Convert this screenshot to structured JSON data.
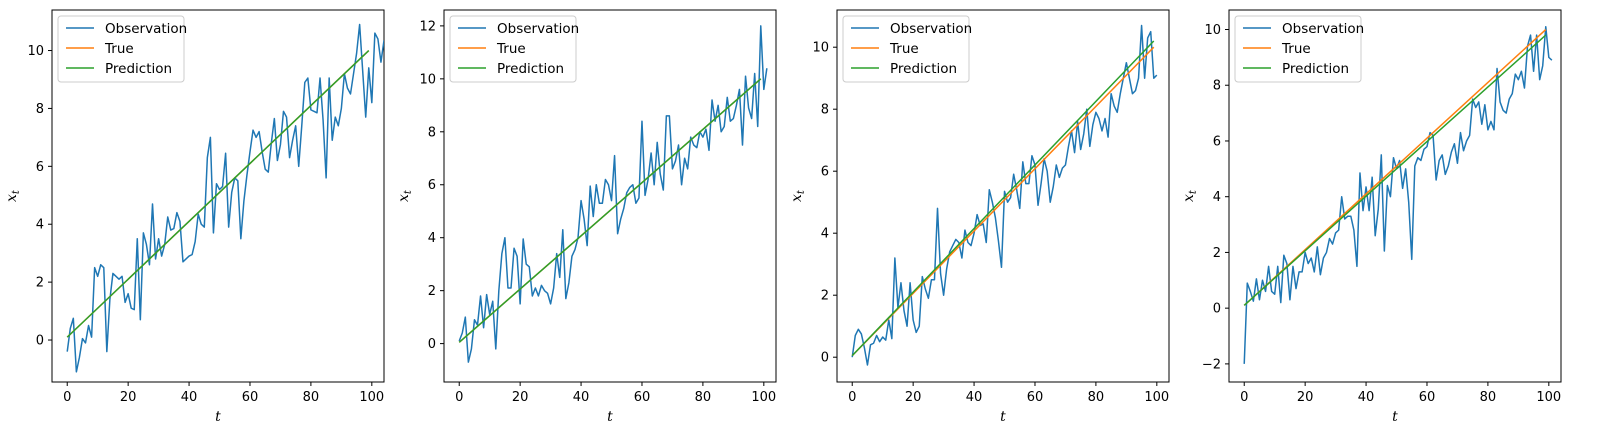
{
  "chart_data": [
    {
      "type": "line",
      "xlabel": "t",
      "ylabel": "x_t",
      "xlim": [
        -5,
        104
      ],
      "ylim": [
        -1.45,
        11.4
      ],
      "xticks": [
        0,
        20,
        40,
        60,
        80,
        100
      ],
      "yticks": [
        0,
        2,
        4,
        6,
        8,
        10
      ],
      "legend_position": "top-left",
      "series": [
        {
          "name": "Observation",
          "color": "#1f77b4",
          "values": [
            -0.4,
            0.4,
            0.75,
            -1.1,
            -0.6,
            0.05,
            -0.1,
            0.5,
            0.1,
            2.5,
            2.2,
            2.6,
            2.5,
            -0.4,
            1.4,
            2.3,
            2.2,
            2.1,
            2.2,
            1.3,
            1.6,
            1.1,
            1.05,
            3.5,
            0.7,
            3.7,
            3.3,
            2.6,
            4.7,
            2.8,
            3.5,
            2.9,
            3.3,
            4.25,
            3.8,
            3.85,
            4.4,
            4.1,
            2.7,
            2.8,
            2.9,
            2.95,
            3.4,
            4.35,
            4.0,
            3.9,
            6.3,
            7.0,
            3.7,
            5.4,
            5.2,
            5.3,
            6.45,
            3.9,
            5.1,
            5.6,
            5.5,
            3.5,
            4.8,
            5.7,
            6.5,
            7.25,
            7.0,
            7.2,
            6.5,
            5.9,
            5.8,
            6.8,
            7.65,
            6.2,
            6.75,
            7.9,
            7.7,
            6.3,
            6.9,
            7.4,
            6.0,
            7.4,
            8.9,
            9.05,
            7.95,
            7.9,
            7.85,
            9.05,
            7.6,
            5.6,
            9.05,
            6.9,
            7.7,
            7.4,
            8.0,
            9.2,
            8.7,
            8.5,
            9.2,
            9.9,
            10.9,
            9.3,
            7.7,
            9.4,
            8.2,
            10.6,
            10.4,
            9.6,
            10.35
          ]
        },
        {
          "name": "True",
          "color": "#ff7f0e",
          "values": [
            0.1,
            10.0
          ]
        },
        {
          "name": "Prediction",
          "color": "#2ca02c",
          "values": [
            0.1,
            10.0
          ]
        }
      ]
    },
    {
      "type": "line",
      "xlabel": "t",
      "ylabel": "x_t",
      "xlim": [
        -5,
        104
      ],
      "ylim": [
        -1.45,
        12.6
      ],
      "xticks": [
        0,
        20,
        40,
        60,
        80,
        100
      ],
      "yticks": [
        0,
        2,
        4,
        6,
        8,
        10,
        12
      ],
      "legend_position": "top-left",
      "series": [
        {
          "name": "Observation",
          "color": "#1f77b4",
          "values": [
            0.1,
            0.4,
            1.0,
            -0.7,
            -0.2,
            0.9,
            0.7,
            1.8,
            0.6,
            1.85,
            1.1,
            1.6,
            -0.2,
            2.0,
            3.4,
            4.0,
            2.1,
            2.1,
            3.6,
            3.3,
            1.5,
            3.95,
            3.0,
            2.9,
            1.8,
            2.1,
            1.8,
            2.2,
            2.0,
            1.9,
            1.5,
            2.1,
            3.4,
            2.5,
            4.3,
            1.7,
            2.3,
            3.3,
            3.55,
            4.0,
            5.4,
            4.7,
            3.7,
            5.95,
            4.8,
            6.0,
            5.3,
            5.3,
            6.2,
            6.0,
            5.4,
            7.1,
            4.15,
            4.7,
            5.1,
            5.7,
            5.9,
            6.0,
            5.3,
            5.5,
            8.4,
            5.6,
            6.2,
            7.2,
            6.0,
            7.6,
            6.4,
            5.8,
            8.6,
            8.6,
            6.6,
            6.9,
            7.5,
            6.0,
            7.0,
            6.6,
            7.8,
            7.5,
            7.4,
            8.0,
            7.8,
            8.1,
            7.3,
            9.2,
            8.4,
            9.0,
            8.0,
            8.2,
            9.3,
            8.4,
            8.5,
            9.0,
            9.6,
            7.5,
            10.1,
            8.9,
            8.5,
            10.2,
            8.2,
            12.0,
            9.6,
            10.4
          ]
        },
        {
          "name": "True",
          "color": "#ff7f0e",
          "values": [
            0.05,
            10.0
          ]
        },
        {
          "name": "Prediction",
          "color": "#2ca02c",
          "values": [
            0.05,
            10.0
          ]
        }
      ]
    },
    {
      "type": "line",
      "xlabel": "t",
      "ylabel": "x_t",
      "xlim": [
        -5,
        104
      ],
      "ylim": [
        -0.8,
        11.2
      ],
      "xticks": [
        0,
        20,
        40,
        60,
        80,
        100
      ],
      "yticks": [
        0,
        2,
        4,
        6,
        8,
        10
      ],
      "legend_position": "top-left",
      "series": [
        {
          "name": "Observation",
          "color": "#1f77b4",
          "values": [
            0.0,
            0.7,
            0.9,
            0.75,
            0.3,
            -0.25,
            0.4,
            0.45,
            0.7,
            0.5,
            0.65,
            0.55,
            1.2,
            0.6,
            3.2,
            1.6,
            2.4,
            1.5,
            1.0,
            2.4,
            1.2,
            0.8,
            1.0,
            2.6,
            2.2,
            1.9,
            2.5,
            2.5,
            4.8,
            2.7,
            2.0,
            2.85,
            3.4,
            3.6,
            3.8,
            3.7,
            3.2,
            4.1,
            3.7,
            3.6,
            4.0,
            4.6,
            4.25,
            4.3,
            3.7,
            5.4,
            5.0,
            4.5,
            3.75,
            2.9,
            5.35,
            5.0,
            5.15,
            5.9,
            5.4,
            4.8,
            6.3,
            5.6,
            5.6,
            6.5,
            6.2,
            4.9,
            5.6,
            6.4,
            6.0,
            5.0,
            5.5,
            6.2,
            5.8,
            6.1,
            6.2,
            6.8,
            7.3,
            6.6,
            7.6,
            6.7,
            7.2,
            8.0,
            6.8,
            7.5,
            7.9,
            7.7,
            7.3,
            7.7,
            7.1,
            8.5,
            8.1,
            7.9,
            8.5,
            9.0,
            9.5,
            9.0,
            8.5,
            8.6,
            9.0,
            10.7,
            9.0,
            10.3,
            10.5,
            9.0,
            9.1
          ]
        },
        {
          "name": "True",
          "color": "#ff7f0e",
          "values": [
            0.05,
            10.0
          ]
        },
        {
          "name": "Prediction",
          "color": "#2ca02c",
          "values": [
            0.05,
            10.2
          ]
        }
      ]
    },
    {
      "type": "line",
      "xlabel": "t",
      "ylabel": "x_t",
      "xlim": [
        -5,
        104
      ],
      "ylim": [
        -2.65,
        10.7
      ],
      "xticks": [
        0,
        20,
        40,
        60,
        80,
        100
      ],
      "yticks": [
        -2,
        0,
        2,
        4,
        6,
        8,
        10
      ],
      "legend_position": "top-left",
      "series": [
        {
          "name": "Observation",
          "color": "#1f77b4",
          "values": [
            -2.0,
            0.9,
            0.6,
            0.25,
            1.05,
            0.3,
            1.0,
            0.6,
            1.5,
            0.6,
            0.5,
            1.5,
            0.2,
            1.9,
            1.6,
            0.3,
            1.5,
            0.7,
            1.3,
            1.3,
            2.0,
            1.6,
            1.8,
            1.3,
            2.2,
            1.2,
            1.8,
            2.0,
            2.5,
            2.3,
            2.7,
            2.8,
            4.0,
            3.2,
            3.3,
            3.3,
            2.8,
            1.5,
            4.85,
            3.5,
            4.35,
            3.5,
            4.7,
            2.6,
            3.55,
            5.5,
            2.05,
            4.4,
            4.0,
            5.4,
            5.0,
            5.3,
            4.3,
            5.0,
            3.8,
            1.75,
            5.1,
            5.4,
            5.3,
            5.7,
            5.8,
            6.3,
            6.2,
            4.6,
            5.3,
            5.5,
            4.8,
            5.1,
            5.6,
            5.9,
            5.2,
            6.3,
            5.65,
            6.0,
            6.2,
            7.5,
            7.2,
            7.4,
            6.6,
            7.3,
            6.4,
            6.7,
            6.4,
            8.6,
            7.4,
            7.1,
            7.0,
            7.5,
            7.7,
            8.4,
            8.2,
            8.5,
            7.9,
            9.4,
            9.8,
            8.5,
            9.8,
            8.2,
            8.7,
            10.1,
            9.0,
            8.9
          ]
        },
        {
          "name": "True",
          "color": "#ff7f0e",
          "values": [
            0.1,
            10.0
          ]
        },
        {
          "name": "Prediction",
          "color": "#2ca02c",
          "values": [
            0.1,
            9.8
          ]
        }
      ]
    }
  ]
}
